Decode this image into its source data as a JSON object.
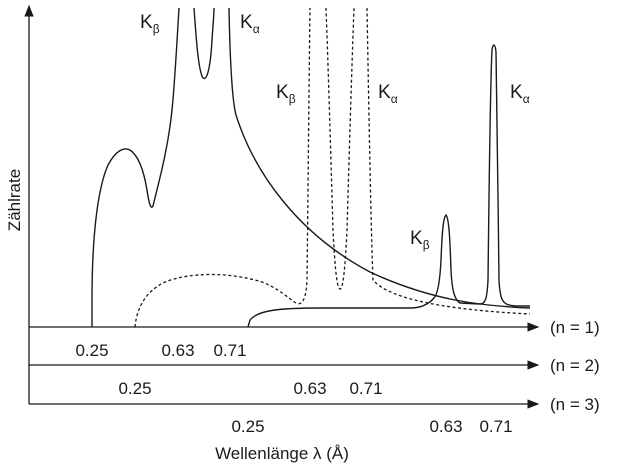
{
  "chart_data": {
    "type": "line",
    "title": "",
    "ylabel": "Zählrate",
    "xlabel": "Wellenlänge λ (Å)",
    "orders": [
      {
        "label": "(n = 1)",
        "ticks": [
          {
            "value": 0.25,
            "label": "0.25"
          },
          {
            "value": 0.63,
            "label": "0.63"
          },
          {
            "value": 0.71,
            "label": "0.71"
          }
        ]
      },
      {
        "label": "(n = 2)",
        "ticks": [
          {
            "value": 0.25,
            "label": "0.25"
          },
          {
            "value": 0.63,
            "label": "0.63"
          },
          {
            "value": 0.71,
            "label": "0.71"
          }
        ]
      },
      {
        "label": "(n = 3)",
        "ticks": [
          {
            "value": 0.25,
            "label": "0.25"
          },
          {
            "value": 0.63,
            "label": "0.63"
          },
          {
            "value": 0.71,
            "label": "0.71"
          }
        ]
      }
    ],
    "series": [
      {
        "order": 1,
        "style": "solid",
        "peaks": [
          {
            "label": "K",
            "sub": "β",
            "wavelength": 0.63
          },
          {
            "label": "K",
            "sub": "α",
            "wavelength": 0.71
          }
        ]
      },
      {
        "order": 2,
        "style": "dashed",
        "peaks": [
          {
            "label": "K",
            "sub": "β",
            "wavelength": 0.63
          },
          {
            "label": "K",
            "sub": "α",
            "wavelength": 0.71
          }
        ]
      },
      {
        "order": 3,
        "style": "solid",
        "peaks": [
          {
            "label": "K",
            "sub": "β",
            "wavelength": 0.63
          },
          {
            "label": "K",
            "sub": "α",
            "wavelength": 0.71
          }
        ]
      }
    ],
    "cutoff_wavelength": 0.25,
    "grid": false,
    "legend": "none"
  }
}
